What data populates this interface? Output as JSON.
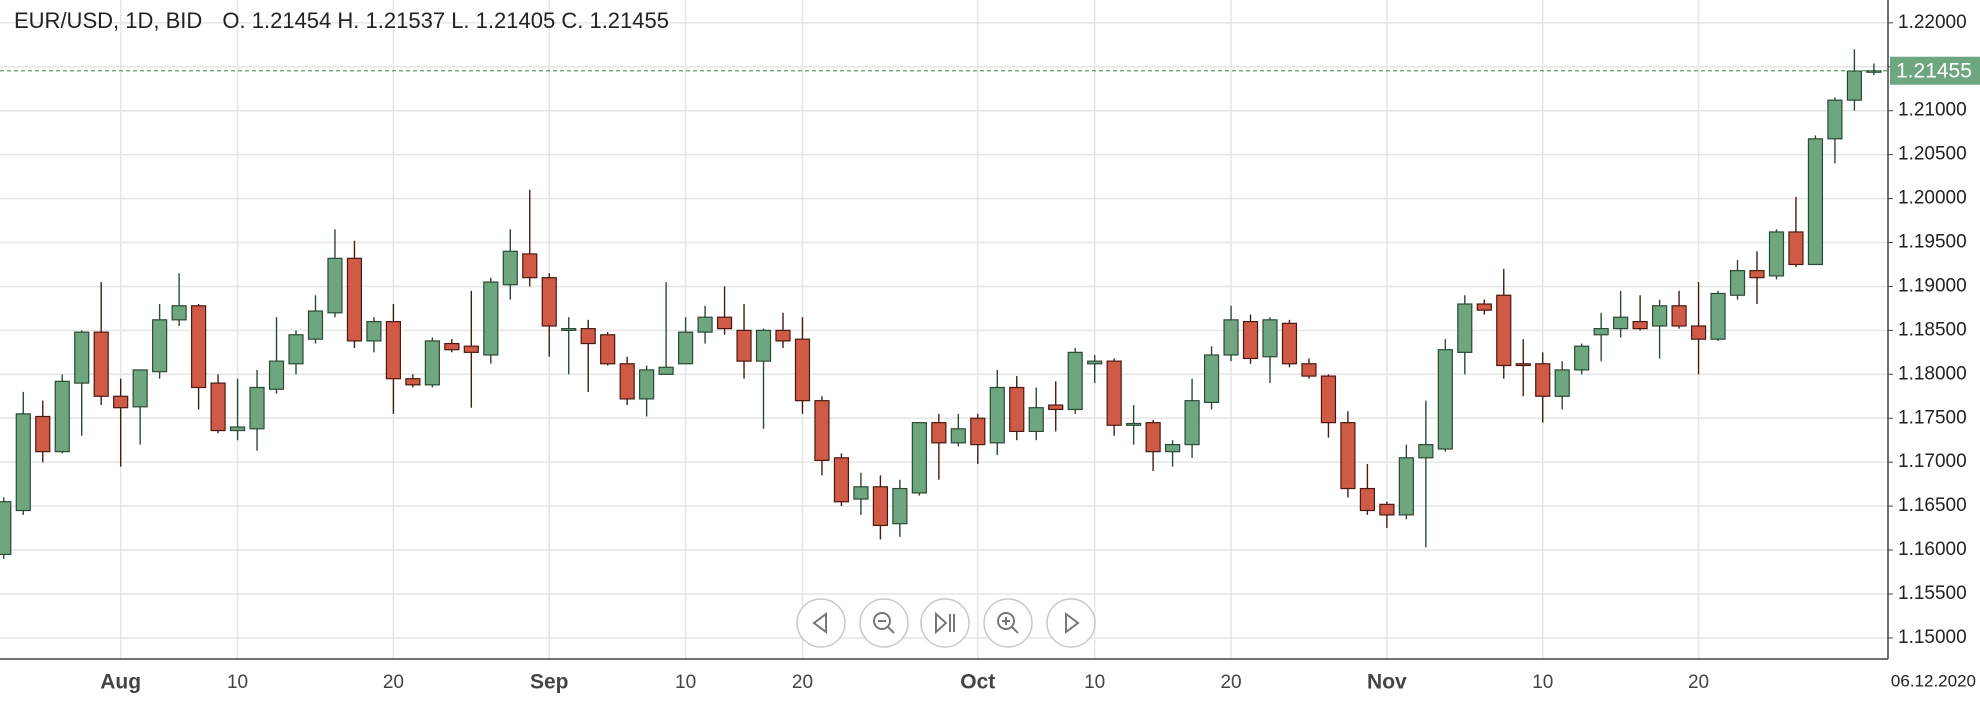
{
  "chart_data": {
    "type": "candlestick",
    "header": {
      "symbol": "EUR/USD, 1D, BID",
      "ohlc": [
        {
          "label": "O.",
          "value": 1.21454
        },
        {
          "label": "H.",
          "value": 1.21537
        },
        {
          "label": "L.",
          "value": 1.21405
        },
        {
          "label": "C.",
          "value": 1.21455
        }
      ]
    },
    "categories": [
      null,
      null,
      null,
      null,
      null,
      null,
      "Aug",
      null,
      null,
      null,
      null,
      null,
      "10",
      null,
      null,
      null,
      null,
      null,
      null,
      null,
      "20",
      null,
      null,
      null,
      null,
      null,
      null,
      null,
      "Sep",
      null,
      null,
      null,
      null,
      null,
      null,
      "10",
      null,
      null,
      null,
      null,
      null,
      "20",
      null,
      null,
      null,
      null,
      null,
      null,
      null,
      null,
      "Oct",
      null,
      null,
      null,
      null,
      null,
      "10",
      null,
      null,
      null,
      null,
      null,
      null,
      "20",
      null,
      null,
      null,
      null,
      null,
      null,
      null,
      "Nov",
      null,
      null,
      null,
      null,
      null,
      null,
      null,
      "10",
      null,
      null,
      null,
      null,
      null,
      null,
      null,
      "20",
      null,
      null,
      null,
      null,
      null,
      null,
      null,
      null,
      null
    ],
    "open": [
      1.1595,
      1.1645,
      1.1752,
      1.1712,
      1.179,
      1.1848,
      1.1775,
      1.1763,
      1.1803,
      1.1862,
      1.1878,
      1.179,
      1.1736,
      1.1738,
      1.1783,
      1.1812,
      1.184,
      1.187,
      1.1932,
      1.1838,
      1.186,
      1.1795,
      1.1788,
      1.1835,
      1.1832,
      1.1822,
      1.1902,
      1.1937,
      1.191,
      1.185,
      1.1852,
      1.1845,
      1.1812,
      1.1772,
      1.18,
      1.1812,
      1.1848,
      1.1865,
      1.185,
      1.1815,
      1.185,
      1.184,
      1.177,
      1.1705,
      1.1658,
      1.1672,
      1.163,
      1.1665,
      1.1745,
      1.1722,
      1.175,
      1.1722,
      1.1785,
      1.1735,
      1.1765,
      1.176,
      1.1812,
      1.1815,
      1.1742,
      1.1745,
      1.1712,
      1.172,
      1.1768,
      1.1822,
      1.186,
      1.182,
      1.1858,
      1.1812,
      1.1798,
      1.1745,
      1.167,
      1.1652,
      1.164,
      1.1705,
      1.1715,
      1.1825,
      1.188,
      1.189,
      1.1812,
      1.1812,
      1.1775,
      1.1805,
      1.1845,
      1.1852,
      1.186,
      1.1855,
      1.1878,
      1.1855,
      1.184,
      1.189,
      1.1918,
      1.1912,
      1.1962,
      1.1925,
      1.2068,
      1.2112,
      1.21454
    ],
    "high": [
      1.166,
      1.178,
      1.177,
      1.18,
      1.185,
      1.1905,
      1.1795,
      1.1805,
      1.188,
      1.1915,
      1.188,
      1.18,
      1.1795,
      1.1805,
      1.1865,
      1.185,
      1.189,
      1.1965,
      1.1952,
      1.1865,
      1.188,
      1.18,
      1.1842,
      1.184,
      1.1895,
      1.191,
      1.1965,
      1.201,
      1.1915,
      1.1865,
      1.1862,
      1.1848,
      1.182,
      1.181,
      1.1905,
      1.1865,
      1.1878,
      1.19,
      1.188,
      1.1852,
      1.187,
      1.1865,
      1.1775,
      1.171,
      1.1688,
      1.1685,
      1.168,
      1.1745,
      1.1755,
      1.1755,
      1.1755,
      1.1805,
      1.1798,
      1.1785,
      1.1792,
      1.183,
      1.1822,
      1.1818,
      1.1765,
      1.1748,
      1.1725,
      1.1795,
      1.1832,
      1.1878,
      1.1868,
      1.1865,
      1.1862,
      1.1818,
      1.18,
      1.1758,
      1.1698,
      1.1655,
      1.172,
      1.177,
      1.184,
      1.189,
      1.1885,
      1.192,
      1.184,
      1.1825,
      1.1815,
      1.1835,
      1.187,
      1.1895,
      1.189,
      1.1885,
      1.1895,
      1.1905,
      1.1895,
      1.193,
      1.194,
      1.1965,
      1.2002,
      1.2072,
      1.2115,
      1.217,
      1.21537
    ],
    "low": [
      1.159,
      1.164,
      1.17,
      1.171,
      1.173,
      1.1765,
      1.1695,
      1.172,
      1.1795,
      1.1855,
      1.176,
      1.1733,
      1.1725,
      1.1713,
      1.1778,
      1.18,
      1.1835,
      1.1865,
      1.183,
      1.1825,
      1.1755,
      1.1785,
      1.1785,
      1.1825,
      1.1762,
      1.1812,
      1.1885,
      1.19,
      1.182,
      1.18,
      1.178,
      1.181,
      1.1765,
      1.1752,
      1.18,
      1.1812,
      1.1835,
      1.1845,
      1.1795,
      1.1738,
      1.183,
      1.1755,
      1.1685,
      1.165,
      1.164,
      1.1612,
      1.1615,
      1.1662,
      1.168,
      1.1718,
      1.1698,
      1.1708,
      1.1725,
      1.1725,
      1.1735,
      1.1755,
      1.179,
      1.173,
      1.172,
      1.169,
      1.1695,
      1.1705,
      1.176,
      1.1815,
      1.1812,
      1.179,
      1.1808,
      1.1795,
      1.1728,
      1.166,
      1.164,
      1.1625,
      1.1635,
      1.1603,
      1.1712,
      1.18,
      1.1868,
      1.1795,
      1.1775,
      1.1745,
      1.176,
      1.18,
      1.1815,
      1.1842,
      1.185,
      1.1818,
      1.1852,
      1.18,
      1.1838,
      1.1885,
      1.188,
      1.1908,
      1.1922,
      1.1925,
      1.204,
      1.21,
      1.21405
    ],
    "close": [
      1.1655,
      1.1755,
      1.1712,
      1.1792,
      1.1848,
      1.1775,
      1.1762,
      1.1805,
      1.1862,
      1.1878,
      1.1785,
      1.1736,
      1.174,
      1.1785,
      1.1815,
      1.1845,
      1.1872,
      1.1932,
      1.1838,
      1.186,
      1.1795,
      1.1788,
      1.1838,
      1.1828,
      1.1825,
      1.1905,
      1.194,
      1.191,
      1.1855,
      1.1852,
      1.1835,
      1.1812,
      1.1772,
      1.1805,
      1.1808,
      1.1848,
      1.1865,
      1.1852,
      1.1815,
      1.185,
      1.1838,
      1.177,
      1.1702,
      1.1655,
      1.1672,
      1.1628,
      1.167,
      1.1745,
      1.1722,
      1.1738,
      1.172,
      1.1785,
      1.1735,
      1.1762,
      1.176,
      1.1825,
      1.1815,
      1.1742,
      1.1744,
      1.1712,
      1.172,
      1.177,
      1.1822,
      1.1862,
      1.1818,
      1.1862,
      1.1812,
      1.1798,
      1.1745,
      1.167,
      1.1645,
      1.164,
      1.1705,
      1.172,
      1.1828,
      1.188,
      1.1873,
      1.181,
      1.181,
      1.1775,
      1.1805,
      1.1832,
      1.1852,
      1.1865,
      1.1852,
      1.1878,
      1.1855,
      1.184,
      1.1892,
      1.1918,
      1.191,
      1.1962,
      1.1925,
      1.2068,
      1.2112,
      1.2145,
      1.21455
    ],
    "up_color": "#6ea67f",
    "down_color": "#cf5a45",
    "ylim": [
      1.1476,
      1.2226
    ],
    "yticks": [
      {
        "value": 1.15,
        "label": "1.15000"
      },
      {
        "value": 1.155,
        "label": "1.15500"
      },
      {
        "value": 1.16,
        "label": "1.16000"
      },
      {
        "value": 1.165,
        "label": "1.16500"
      },
      {
        "value": 1.17,
        "label": "1.17000"
      },
      {
        "value": 1.175,
        "label": "1.17500"
      },
      {
        "value": 1.18,
        "label": "1.18000"
      },
      {
        "value": 1.185,
        "label": "1.18500"
      },
      {
        "value": 1.19,
        "label": "1.19000"
      },
      {
        "value": 1.195,
        "label": "1.19500"
      },
      {
        "value": 1.2,
        "label": "1.20000"
      },
      {
        "value": 1.205,
        "label": "1.20500"
      },
      {
        "value": 1.21,
        "label": "1.21000"
      },
      {
        "value": 1.215,
        "label": "1.21500"
      },
      {
        "value": 1.22,
        "label": "1.22000"
      }
    ],
    "last_price": 1.21455,
    "date_label": "06.12.2020",
    "grid": true
  }
}
